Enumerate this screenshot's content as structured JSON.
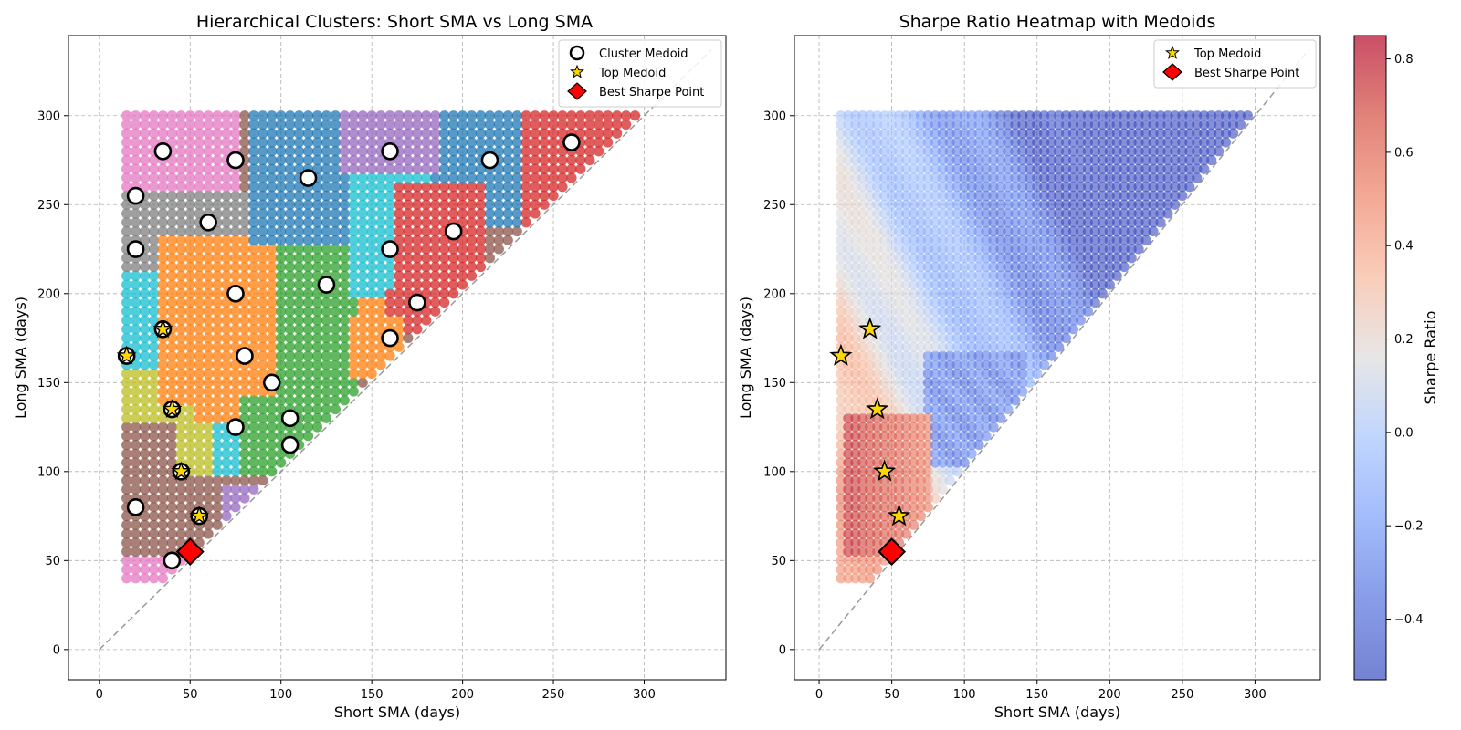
{
  "chart_data": [
    {
      "type": "scatter",
      "title": "Hierarchical Clusters: Short SMA vs Long SMA",
      "xlabel": "Short SMA (days)",
      "ylabel": "Long SMA (days)",
      "xlim": [
        -17,
        345
      ],
      "ylim": [
        -17,
        345
      ],
      "xticks": [
        0,
        50,
        100,
        150,
        200,
        250,
        300
      ],
      "yticks": [
        0,
        50,
        100,
        150,
        200,
        250,
        300
      ],
      "grid": true,
      "diagonal": "y = x (dashed)",
      "grid_points": {
        "x_min": 15,
        "x_max": 295,
        "y_min": 40,
        "y_max": 300,
        "step": 5,
        "rule": "short + 5 <= long"
      },
      "cluster_colors": [
        "#1f77b4",
        "#ff7f0e",
        "#2ca02c",
        "#d62728",
        "#9467bd",
        "#8c564b",
        "#e377c2",
        "#7f7f7f",
        "#bcbd22",
        "#17becf"
      ],
      "cluster_regions": [
        {
          "cluster": 6,
          "x": [
            15,
            35
          ],
          "y": [
            40,
            300
          ]
        },
        {
          "cluster": 6,
          "x": [
            40,
            75
          ],
          "y": [
            255,
            300
          ]
        },
        {
          "cluster": 6,
          "x": [
            35,
            55
          ],
          "y": [
            40,
            55
          ]
        },
        {
          "cluster": 4,
          "x": [
            15,
            25
          ],
          "y": [
            55,
            95
          ]
        },
        {
          "cluster": 4,
          "x": [
            45,
            85
          ],
          "y": [
            55,
            90
          ]
        },
        {
          "cluster": 5,
          "x": [
            15,
            65
          ],
          "y": [
            55,
            130
          ]
        },
        {
          "cluster": 8,
          "x": [
            15,
            65
          ],
          "y": [
            130,
            160
          ]
        },
        {
          "cluster": 8,
          "x": [
            45,
            65
          ],
          "y": [
            100,
            130
          ]
        },
        {
          "cluster": 9,
          "x": [
            15,
            50
          ],
          "y": [
            160,
            215
          ]
        },
        {
          "cluster": 9,
          "x": [
            65,
            85
          ],
          "y": [
            100,
            140
          ]
        },
        {
          "cluster": 7,
          "x": [
            15,
            80
          ],
          "y": [
            215,
            255
          ]
        },
        {
          "cluster": 1,
          "x": [
            35,
            100
          ],
          "y": [
            140,
            230
          ]
        },
        {
          "cluster": 1,
          "x": [
            55,
            80
          ],
          "y": [
            130,
            145
          ]
        },
        {
          "cluster": 1,
          "x": [
            100,
            160
          ],
          "y": [
            160,
            200
          ]
        },
        {
          "cluster": 2,
          "x": [
            80,
            110
          ],
          "y": [
            100,
            140
          ]
        },
        {
          "cluster": 2,
          "x": [
            100,
            140
          ],
          "y": [
            140,
            230
          ]
        },
        {
          "cluster": 2,
          "x": [
            110,
            130
          ],
          "y": [
            100,
            160
          ]
        },
        {
          "cluster": 0,
          "x": [
            85,
            135
          ],
          "y": [
            230,
            300
          ]
        },
        {
          "cluster": 0,
          "x": [
            185,
            235
          ],
          "y": [
            240,
            300
          ]
        },
        {
          "cluster": 4,
          "x": [
            135,
            185
          ],
          "y": [
            270,
            300
          ]
        },
        {
          "cluster": 4,
          "x": [
            150,
            175
          ],
          "y": [
            260,
            275
          ]
        },
        {
          "cluster": 9,
          "x": [
            140,
            180
          ],
          "y": [
            200,
            265
          ]
        },
        {
          "cluster": 3,
          "x": [
            165,
            210
          ],
          "y": [
            190,
            260
          ]
        },
        {
          "cluster": 3,
          "x": [
            160,
            185
          ],
          "y": [
            180,
            200
          ]
        },
        {
          "cluster": 3,
          "x": [
            235,
            295
          ],
          "y": [
            240,
            300
          ]
        },
        {
          "cluster": 1,
          "x": [
            140,
            165
          ],
          "y": [
            155,
            185
          ]
        }
      ],
      "medoids": [
        {
          "x": 35,
          "y": 280
        },
        {
          "x": 75,
          "y": 275
        },
        {
          "x": 160,
          "y": 280
        },
        {
          "x": 215,
          "y": 275
        },
        {
          "x": 260,
          "y": 285
        },
        {
          "x": 20,
          "y": 255
        },
        {
          "x": 115,
          "y": 265
        },
        {
          "x": 60,
          "y": 240
        },
        {
          "x": 20,
          "y": 225
        },
        {
          "x": 160,
          "y": 225
        },
        {
          "x": 195,
          "y": 235
        },
        {
          "x": 125,
          "y": 205
        },
        {
          "x": 75,
          "y": 200
        },
        {
          "x": 175,
          "y": 195
        },
        {
          "x": 35,
          "y": 180
        },
        {
          "x": 160,
          "y": 175
        },
        {
          "x": 15,
          "y": 165
        },
        {
          "x": 80,
          "y": 165
        },
        {
          "x": 95,
          "y": 150
        },
        {
          "x": 40,
          "y": 135
        },
        {
          "x": 105,
          "y": 130
        },
        {
          "x": 75,
          "y": 125
        },
        {
          "x": 105,
          "y": 115
        },
        {
          "x": 45,
          "y": 100
        },
        {
          "x": 20,
          "y": 80
        },
        {
          "x": 55,
          "y": 75
        },
        {
          "x": 40,
          "y": 50
        }
      ],
      "top_medoids": [
        {
          "x": 35,
          "y": 180
        },
        {
          "x": 15,
          "y": 165
        },
        {
          "x": 40,
          "y": 135
        },
        {
          "x": 45,
          "y": 100
        },
        {
          "x": 55,
          "y": 75
        }
      ],
      "best_point": {
        "x": 50,
        "y": 55
      },
      "legend": {
        "position": "upper right",
        "entries": [
          "Cluster Medoid",
          "Top Medoid",
          "Best Sharpe Point"
        ]
      }
    },
    {
      "type": "heatmap",
      "title": "Sharpe Ratio Heatmap with Medoids",
      "xlabel": "Short SMA (days)",
      "ylabel": "Long SMA (days)",
      "xlim": [
        -17,
        345
      ],
      "ylim": [
        -17,
        345
      ],
      "xticks": [
        0,
        50,
        100,
        150,
        200,
        250,
        300
      ],
      "yticks": [
        0,
        50,
        100,
        150,
        200,
        250,
        300
      ],
      "grid": true,
      "diagonal": "y = x (dashed)",
      "colormap": "coolwarm",
      "colorbar": {
        "label": "Sharpe Ratio",
        "range": [
          -0.53,
          0.85
        ],
        "ticks": [
          -0.4,
          -0.2,
          0.0,
          0.2,
          0.4,
          0.6,
          0.8
        ],
        "tick_labels": [
          "−0.4",
          "−0.2",
          "0.0",
          "0.2",
          "0.4",
          "0.6",
          "0.8"
        ]
      },
      "sharpe_trend": {
        "description": "high (~0.5-0.8) at small short/long windows near lower-left, decreasing toward upper-right (~-0.5)",
        "low_pocket": {
          "x": [
            75,
            140
          ],
          "y": [
            105,
            165
          ],
          "value": -0.3
        },
        "high_pocket": {
          "x": [
            20,
            75
          ],
          "y": [
            55,
            130
          ],
          "value": 0.75
        }
      },
      "top_medoids": [
        {
          "x": 35,
          "y": 180
        },
        {
          "x": 15,
          "y": 165
        },
        {
          "x": 40,
          "y": 135
        },
        {
          "x": 45,
          "y": 100
        },
        {
          "x": 55,
          "y": 75
        }
      ],
      "best_point": {
        "x": 50,
        "y": 55
      },
      "legend": {
        "position": "upper right",
        "entries": [
          "Top Medoid",
          "Best Sharpe Point"
        ]
      }
    }
  ]
}
